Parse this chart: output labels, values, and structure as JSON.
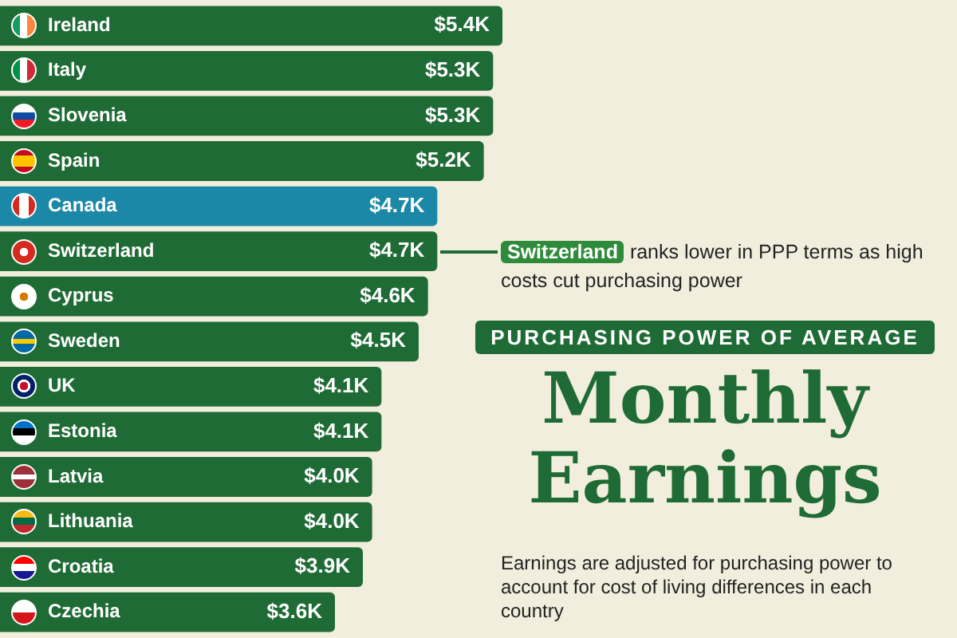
{
  "chart_data": {
    "type": "bar",
    "orientation": "horizontal",
    "title": "Monthly Earnings",
    "subtitle": "PURCHASING POWER OF AVERAGE",
    "categories": [
      "Ireland",
      "Italy",
      "Slovenia",
      "Spain",
      "Canada",
      "Switzerland",
      "Cyprus",
      "Sweden",
      "UK",
      "Estonia",
      "Latvia",
      "Lithuania",
      "Croatia",
      "Czechia"
    ],
    "values": [
      5.4,
      5.3,
      5.3,
      5.2,
      4.7,
      4.7,
      4.6,
      4.5,
      4.1,
      4.1,
      4.0,
      4.0,
      3.9,
      3.6
    ],
    "value_labels": [
      "$5.4K",
      "$5.3K",
      "$5.3K",
      "$5.2K",
      "$4.7K",
      "$4.7K",
      "$4.6K",
      "$4.5K",
      "$4.1K",
      "$4.1K",
      "$4.0K",
      "$4.0K",
      "$3.9K",
      "$3.6K"
    ],
    "colors": [
      "#1f6b35",
      "#1f6b35",
      "#1f6b35",
      "#1f6b35",
      "#1b88a8",
      "#1f6b35",
      "#1f6b35",
      "#1f6b35",
      "#1f6b35",
      "#1f6b35",
      "#1f6b35",
      "#1f6b35",
      "#1f6b35",
      "#1f6b35"
    ],
    "tick_labels": false,
    "annotations": [
      "Switzerland ranks lower in PPP terms as high costs cut purchasing power",
      "Earnings are adjusted for purchasing power to account for cost of living differences in each country"
    ]
  }
}
